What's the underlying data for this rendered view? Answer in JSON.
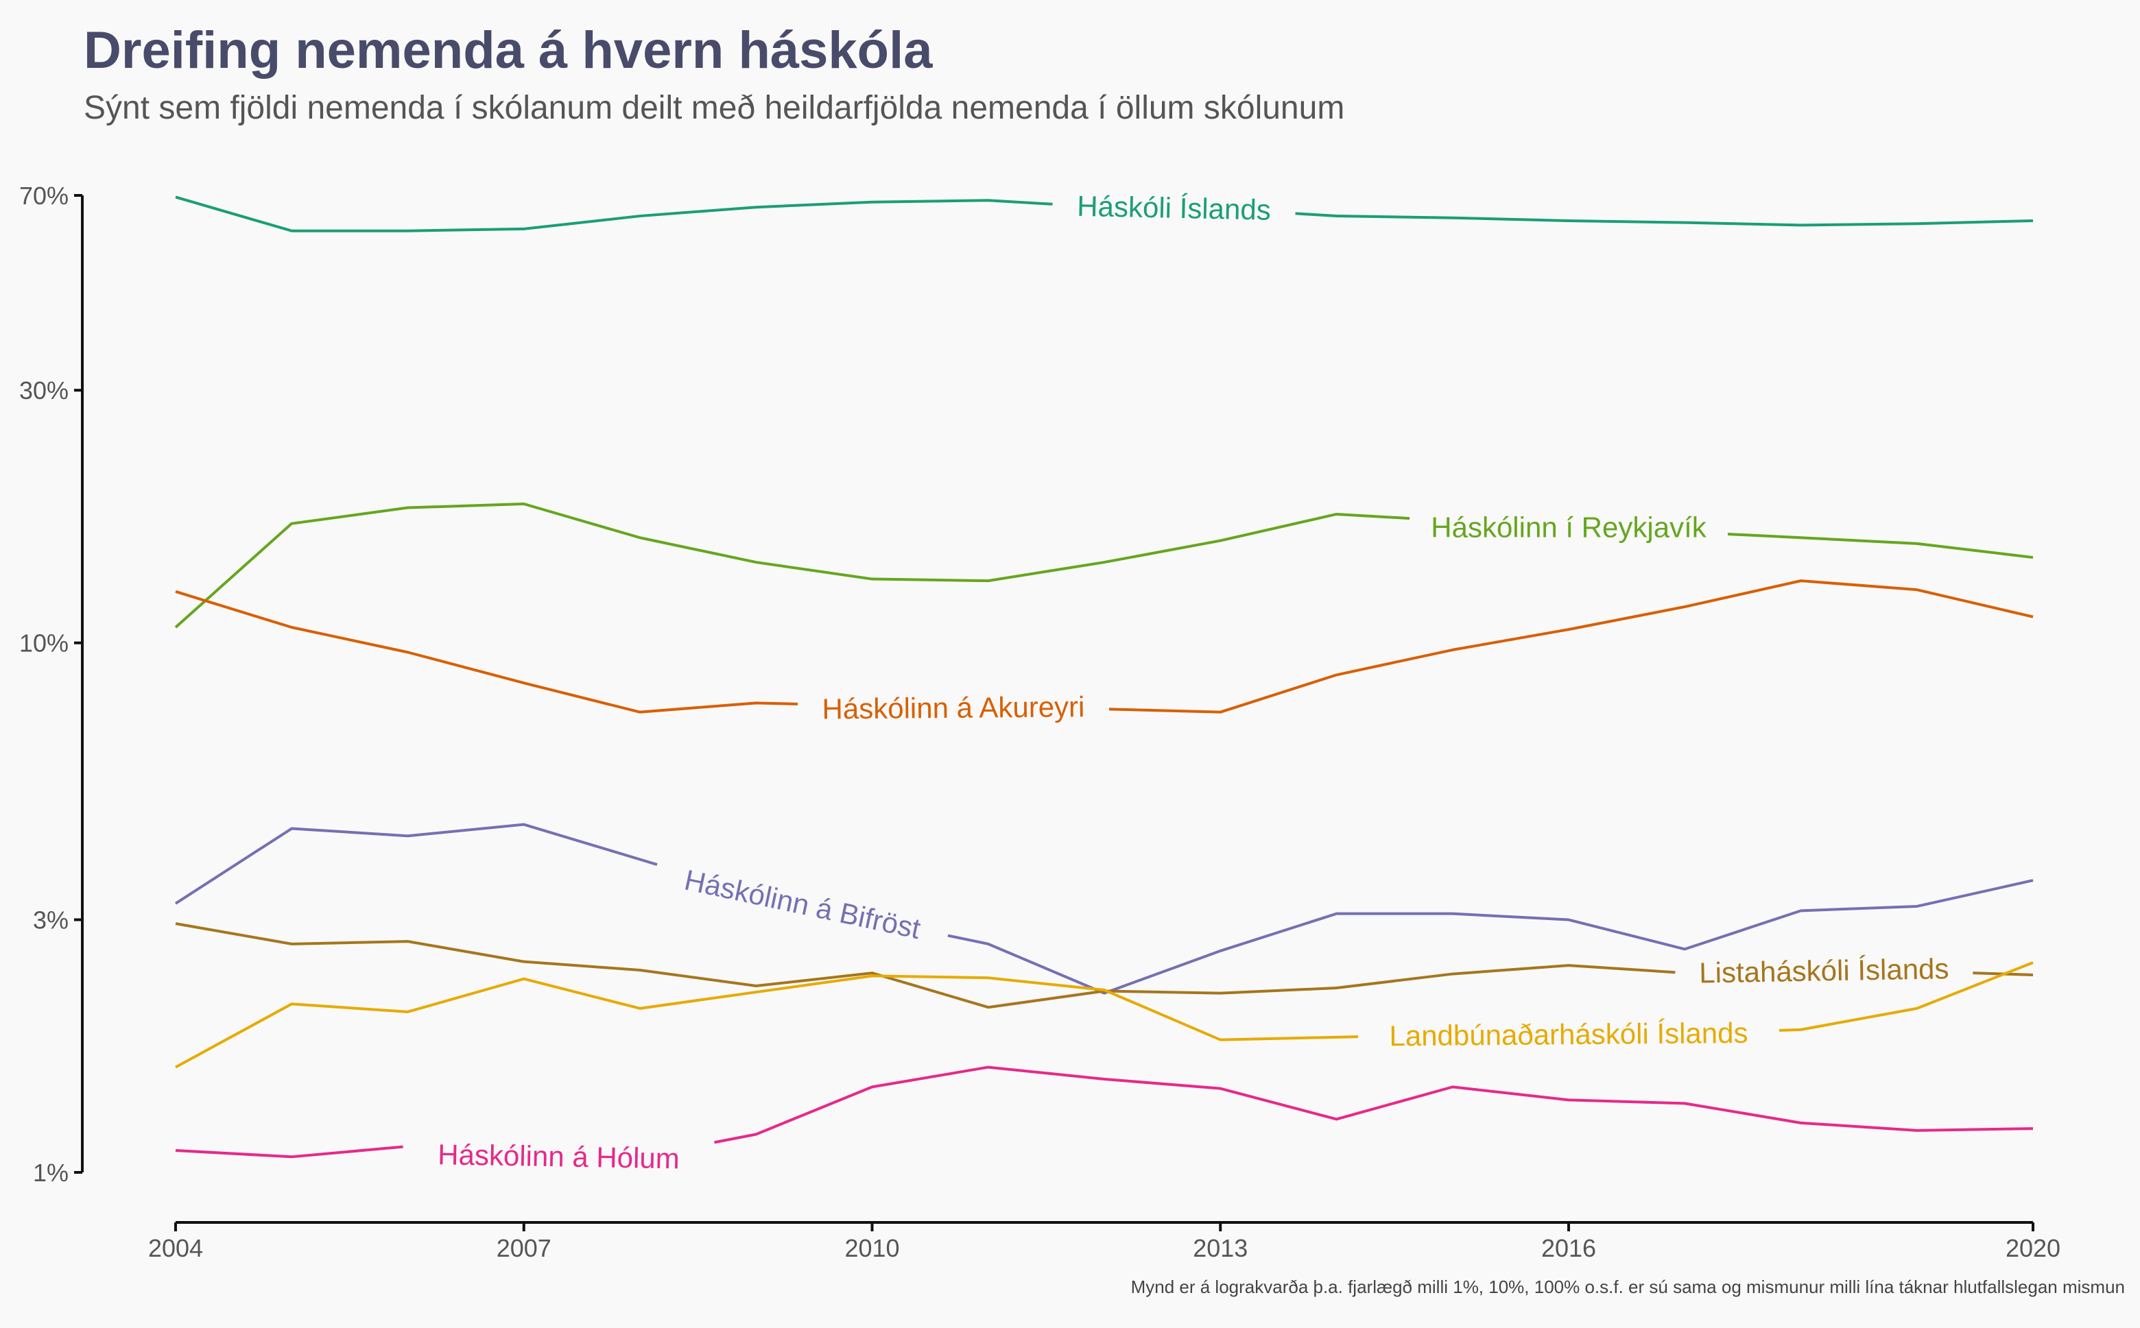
{
  "title": "Dreifing nemenda á hvern háskóla",
  "subtitle": "Sýnt sem fjöldi nemenda í skólanum deilt með heildarfjölda nemenda í öllum skólunum",
  "caption": "Mynd er á lograkvarða þ.a. fjarlægð milli 1%, 10%, 100% o.s.f. er sú sama og mismunur milli lína táknar hlutfallslegan mismun",
  "chart_data": {
    "type": "line",
    "title": "Dreifing nemenda á hvern háskóla",
    "subtitle": "Sýnt sem fjöldi nemenda í skólanum deilt með heildarfjölda nemenda í öllum skólunum",
    "xlabel": "",
    "ylabel": "",
    "yscale": "log",
    "ylim": [
      0.01,
      0.7
    ],
    "xlim": [
      2004,
      2020
    ],
    "x_ticks": [
      2004,
      2007,
      2010,
      2013,
      2016,
      2020
    ],
    "x_tick_labels": [
      "2004",
      "2007",
      "2010",
      "2013",
      "2016",
      "2020"
    ],
    "y_ticks": [
      0.01,
      0.03,
      0.1,
      0.3,
      0.7
    ],
    "y_tick_labels": [
      "1%",
      "3%",
      "10%",
      "30%",
      "70%"
    ],
    "grid": false,
    "legend": "none (direct labels on lines)",
    "x": [
      2004,
      2005,
      2006,
      2007,
      2008,
      2009,
      2010,
      2011,
      2012,
      2013,
      2014,
      2015,
      2016,
      2017,
      2018,
      2019,
      2020
    ],
    "series": [
      {
        "name": "Háskóli Íslands",
        "color": "#1b9e77",
        "values": [
          0.695,
          0.6,
          0.6,
          0.605,
          0.64,
          0.665,
          0.68,
          0.685,
          0.665,
          0.66,
          0.64,
          0.635,
          0.627,
          0.622,
          0.615,
          0.619,
          0.627
        ]
      },
      {
        "name": "Háskólinn í Reykjavík",
        "color": "#66a61e",
        "values": [
          0.107,
          0.168,
          0.18,
          0.183,
          0.158,
          0.142,
          0.132,
          0.131,
          0.142,
          0.156,
          0.175,
          0.17,
          0.165,
          0.162,
          0.158,
          0.154,
          0.145
        ]
      },
      {
        "name": "Háskólinn á Akureyri",
        "color": "#d95f02",
        "values": [
          0.125,
          0.107,
          0.096,
          0.084,
          0.074,
          0.077,
          0.076,
          0.075,
          0.075,
          0.074,
          0.087,
          0.097,
          0.106,
          0.117,
          0.131,
          0.126,
          0.112
        ]
      },
      {
        "name": "Háskólinn á Bifröst",
        "color": "#7570b3",
        "values": [
          0.0322,
          0.0446,
          0.0432,
          0.0454,
          0.039,
          0.0335,
          0.03,
          0.027,
          0.0218,
          0.0262,
          0.0308,
          0.0308,
          0.03,
          0.0264,
          0.0312,
          0.0318,
          0.0356
        ]
      },
      {
        "name": "Listaháskóli Íslands",
        "color": "#a6761d",
        "values": [
          0.0295,
          0.027,
          0.0273,
          0.025,
          0.0241,
          0.0225,
          0.0238,
          0.0205,
          0.022,
          0.0218,
          0.0223,
          0.0237,
          0.0246,
          0.0238,
          0.024,
          0.024,
          0.0236
        ]
      },
      {
        "name": "Landbúnaðarháskóli Íslands",
        "color": "#e6ab02",
        "values": [
          0.0158,
          0.0208,
          0.0201,
          0.0232,
          0.0204,
          0.0219,
          0.0235,
          0.0233,
          0.0221,
          0.0178,
          0.018,
          0.0182,
          0.0182,
          0.0183,
          0.0186,
          0.0204,
          0.0249
        ]
      },
      {
        "name": "Háskólinn á Hólum",
        "color": "#e7298a",
        "values": [
          0.011,
          0.0107,
          0.0112,
          0.0107,
          0.0107,
          0.0118,
          0.0145,
          0.0158,
          0.015,
          0.0144,
          0.0126,
          0.0145,
          0.0137,
          0.0135,
          0.0124,
          0.012,
          0.0121
        ]
      }
    ]
  }
}
